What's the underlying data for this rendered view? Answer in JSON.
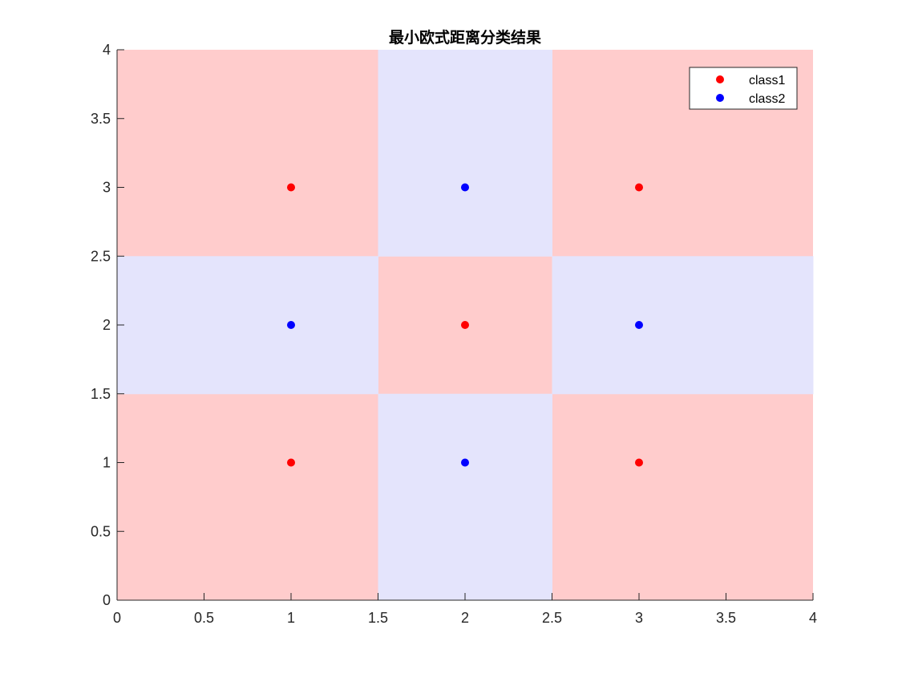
{
  "chart_data": {
    "type": "scatter",
    "title": "最小欧式距离分类结果",
    "xlabel": "",
    "ylabel": "",
    "xlim": [
      0,
      4
    ],
    "ylim": [
      0,
      4
    ],
    "x_ticks": [
      "0",
      "0.5",
      "1",
      "1.5",
      "2",
      "2.5",
      "3",
      "3.5",
      "4"
    ],
    "y_ticks": [
      "0",
      "0.5",
      "1",
      "1.5",
      "2",
      "2.5",
      "3",
      "3.5",
      "4"
    ],
    "grid": false,
    "legend_position": "top-right",
    "background_regions": {
      "class1_color": "#ffcccc",
      "class2_color": "#e4e4fc",
      "class2_region": "ring between inner boundary (x from 1.5 to 2.5, y from 1.5 to 2.5) and outer boundary (x from 0.67 to 3.33, y from 0.67 to 3.33)"
    },
    "series": [
      {
        "name": "class1",
        "color": "#ff0000",
        "points": [
          [
            1,
            1
          ],
          [
            1,
            3
          ],
          [
            2,
            2
          ],
          [
            3,
            1
          ],
          [
            3,
            3
          ]
        ]
      },
      {
        "name": "class2",
        "color": "#0000ff",
        "points": [
          [
            1,
            2
          ],
          [
            2,
            1
          ],
          [
            2,
            3
          ],
          [
            3,
            2
          ]
        ]
      }
    ]
  }
}
